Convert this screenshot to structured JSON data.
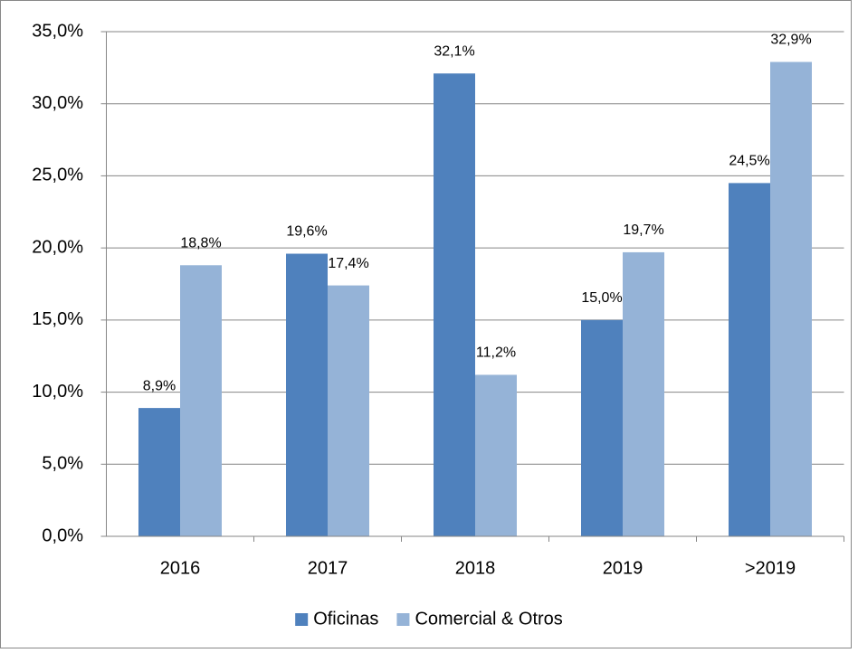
{
  "chart_data": {
    "type": "bar",
    "categories": [
      "2016",
      "2017",
      "2018",
      "2019",
      ">2019"
    ],
    "series": [
      {
        "name": "Oficinas",
        "color": "#4f81bd",
        "values": [
          8.9,
          19.6,
          32.1,
          15.0,
          24.5
        ],
        "value_labels": [
          "8,9%",
          "19,6%",
          "32,1%",
          "15,0%",
          "24,5%"
        ]
      },
      {
        "name": "Comercial & Otros",
        "color": "#95b3d7",
        "values": [
          18.8,
          17.4,
          11.2,
          19.7,
          32.9
        ],
        "value_labels": [
          "18,8%",
          "17,4%",
          "11,2%",
          "19,7%",
          "32,9%"
        ]
      }
    ],
    "ylim": [
      0,
      35
    ],
    "yticks": [
      {
        "value": 0,
        "label": "0,0%"
      },
      {
        "value": 5,
        "label": "5,0%"
      },
      {
        "value": 10,
        "label": "10,0%"
      },
      {
        "value": 15,
        "label": "15,0%"
      },
      {
        "value": 20,
        "label": "20,0%"
      },
      {
        "value": 25,
        "label": "25,0%"
      },
      {
        "value": 30,
        "label": "30,0%"
      },
      {
        "value": 35,
        "label": "35,0%"
      }
    ],
    "grid": true,
    "legend": "bottom"
  }
}
